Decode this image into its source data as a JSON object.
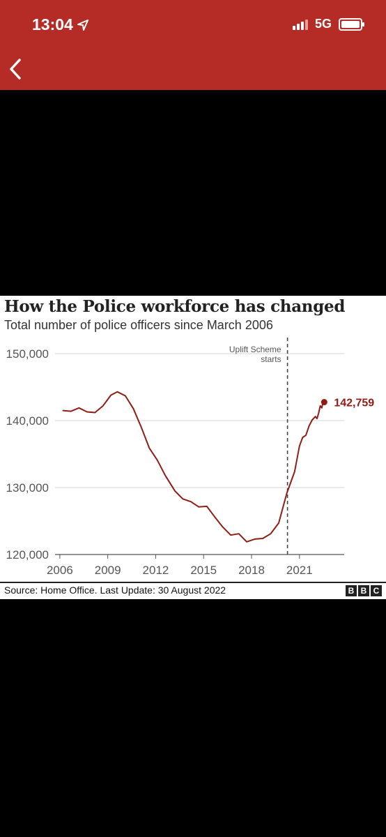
{
  "status_bar": {
    "time": "13:04",
    "network": "5G"
  },
  "chart_card": {
    "title": "How the Police workforce has changed",
    "subtitle": "Total number of police officers since March 2006",
    "annotation_line1": "Uplift Scheme",
    "annotation_line2": "starts",
    "end_label": "142,759",
    "source": "Source: Home Office. Last Update: 30 August 2022",
    "logo_letters": [
      "B",
      "B",
      "C"
    ]
  },
  "chart_data": {
    "type": "line",
    "title": "How the Police workforce has changed",
    "subtitle": "Total number of police officers since March 2006",
    "xlabel": "",
    "ylabel": "",
    "xlim": [
      2005.7,
      2023.8
    ],
    "ylim": [
      120000,
      150000
    ],
    "x_ticks": [
      2006,
      2009,
      2012,
      2015,
      2018,
      2021
    ],
    "x_tick_labels": [
      "2006",
      "2009",
      "2012",
      "2015",
      "2018",
      "2021"
    ],
    "y_ticks": [
      120000,
      130000,
      140000,
      150000
    ],
    "y_tick_labels": [
      "120,000",
      "130,000",
      "140,000",
      "150,000"
    ],
    "grid": "horizontal",
    "line_color": "#8f1d16",
    "annotation": {
      "x": 2020.25,
      "text": [
        "Uplift Scheme",
        "starts"
      ]
    },
    "series": [
      {
        "values": [
          [
            2006.2,
            141500
          ],
          [
            2006.7,
            141400
          ],
          [
            2007.2,
            141900
          ],
          [
            2007.7,
            141300
          ],
          [
            2008.2,
            141200
          ],
          [
            2008.7,
            142200
          ],
          [
            2009.2,
            143800
          ],
          [
            2009.6,
            144300
          ],
          [
            2010.1,
            143700
          ],
          [
            2010.6,
            141800
          ],
          [
            2011.1,
            139000
          ],
          [
            2011.6,
            135900
          ],
          [
            2012.1,
            134100
          ],
          [
            2012.6,
            131800
          ],
          [
            2013.2,
            129500
          ],
          [
            2013.7,
            128300
          ],
          [
            2014.2,
            127900
          ],
          [
            2014.7,
            127100
          ],
          [
            2015.2,
            127200
          ],
          [
            2015.7,
            125600
          ],
          [
            2016.2,
            124100
          ],
          [
            2016.7,
            122900
          ],
          [
            2017.2,
            123100
          ],
          [
            2017.7,
            121900
          ],
          [
            2018.2,
            122300
          ],
          [
            2018.7,
            122400
          ],
          [
            2019.2,
            123100
          ],
          [
            2019.7,
            124700
          ],
          [
            2020.2,
            129100
          ],
          [
            2020.7,
            132400
          ],
          [
            2021.0,
            136200
          ],
          [
            2021.2,
            137500
          ],
          [
            2021.4,
            137800
          ],
          [
            2021.6,
            139200
          ],
          [
            2021.8,
            140100
          ],
          [
            2022.0,
            140600
          ],
          [
            2022.1,
            140300
          ],
          [
            2022.2,
            141100
          ],
          [
            2022.3,
            142200
          ],
          [
            2022.4,
            141900
          ],
          [
            2022.45,
            142500
          ],
          [
            2022.55,
            142759
          ]
        ]
      }
    ],
    "end_point": {
      "x": 2022.55,
      "y": 142759,
      "label": "142,759"
    }
  }
}
